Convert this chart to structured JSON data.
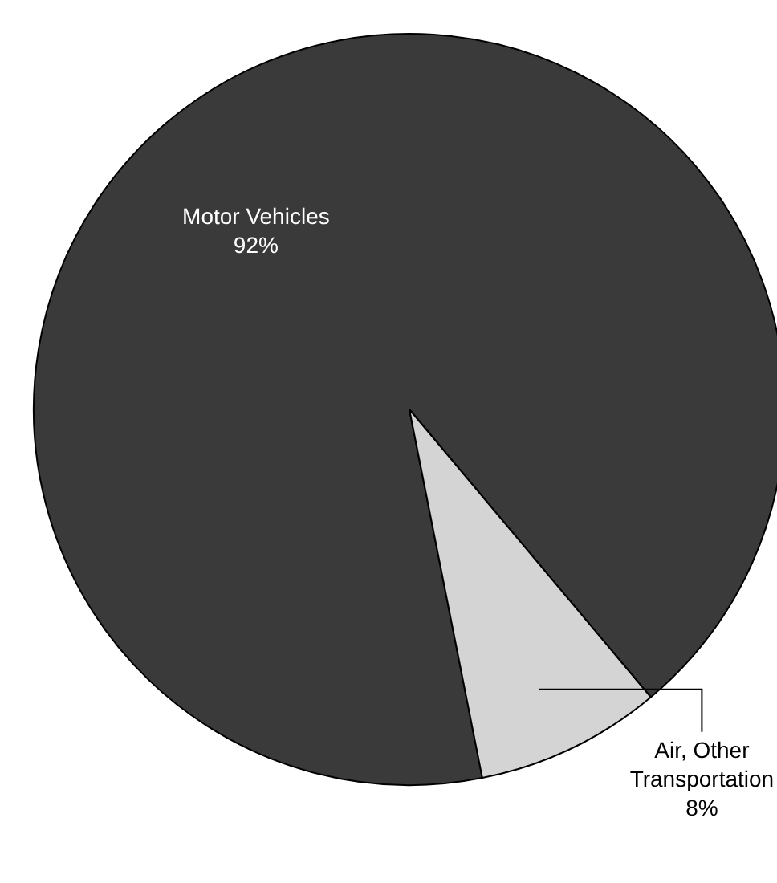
{
  "chart_data": {
    "type": "pie",
    "categories": [
      "Motor Vehicles",
      "Air, Other Transportation"
    ],
    "values": [
      92,
      8
    ],
    "colors": [
      "#3a3a3a",
      "#d4d4d4"
    ],
    "value_labels": [
      "92%",
      "8%"
    ],
    "legend": false
  }
}
